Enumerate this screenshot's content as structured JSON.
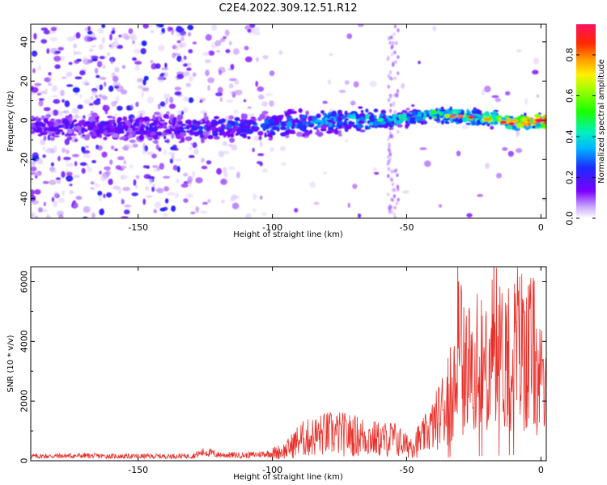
{
  "figure": {
    "title": "C2E4.2022.309.12.51.R12"
  },
  "chart_data": [
    {
      "type": "heatmap",
      "xlabel": "Height of straight line (km)",
      "ylabel": "Frequency (Hz)",
      "xlim": [
        -190,
        2
      ],
      "ylim": [
        -50,
        49
      ],
      "xticks": [
        -150,
        -100,
        -50,
        0
      ],
      "yticks": [
        -40,
        -20,
        0,
        20,
        40
      ],
      "ridge": {
        "x": [
          -190,
          -150,
          -130,
          -100,
          -80,
          -60,
          -50,
          -40,
          -30,
          -20,
          -10,
          0
        ],
        "center_hz": [
          -4,
          -4,
          -4,
          -3,
          0,
          0,
          1,
          3,
          2,
          1,
          -1,
          0
        ],
        "amplitude": [
          0.18,
          0.18,
          0.22,
          0.3,
          0.32,
          0.4,
          0.45,
          0.5,
          0.55,
          0.62,
          0.72,
          0.95
        ]
      },
      "colorbar": {
        "label": "Normalized spectral amplitude",
        "range": [
          0,
          0.95
        ],
        "ticks": [
          0.0,
          0.2,
          0.4,
          0.6,
          0.8
        ]
      },
      "grid": false
    },
    {
      "type": "line",
      "xlabel": "Height of straight line (km)",
      "ylabel": "SNR (10 * v/v)",
      "xlim": [
        -190,
        2
      ],
      "ylim": [
        0,
        6500
      ],
      "xticks": [
        -150,
        -100,
        -50,
        0
      ],
      "yticks": [
        0,
        2000,
        4000,
        6000
      ],
      "series": [
        {
          "color": "#e8302a",
          "x": [
            -190,
            -180,
            -170,
            -160,
            -150,
            -140,
            -130,
            -125,
            -120,
            -110,
            -100,
            -95,
            -90,
            -85,
            -80,
            -75,
            -70,
            -65,
            -60,
            -55,
            -50,
            -45,
            -40,
            -35,
            -33,
            -30,
            -28,
            -25,
            -22,
            -20,
            -18,
            -15,
            -12,
            -10,
            -8,
            -5,
            -3,
            -2,
            0,
            2
          ],
          "y": [
            150,
            160,
            170,
            150,
            150,
            150,
            160,
            300,
            200,
            180,
            250,
            350,
            700,
            800,
            900,
            900,
            850,
            800,
            700,
            750,
            500,
            700,
            1200,
            2000,
            2800,
            3500,
            3000,
            3300,
            3100,
            3800,
            3600,
            3400,
            3700,
            3800,
            3900,
            3600,
            3700,
            3300,
            2600,
            2000
          ]
        }
      ],
      "grid": false
    }
  ]
}
